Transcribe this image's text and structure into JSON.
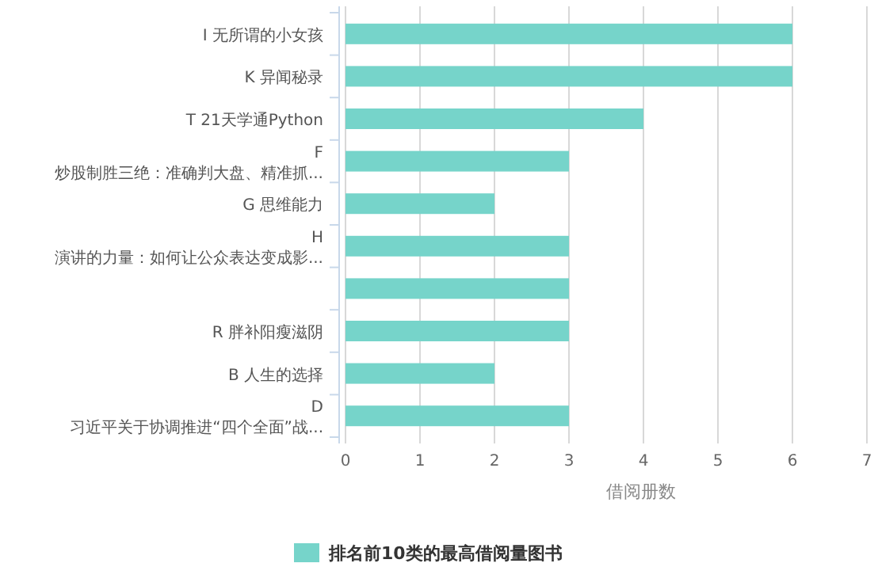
{
  "chart_data": {
    "type": "bar",
    "orientation": "horizontal",
    "categories": [
      "I 无所谓的小女孩",
      "K 异闻秘录",
      "T 21天学通Python",
      "F\n炒股制胜三绝：准确判大盘、精准抓...",
      "G 思维能力",
      "H\n演讲的力量：如何让公众表达变成影...",
      null,
      "R 胖补阳瘦滋阴",
      "B 人生的选择",
      "D\n习近平关于协调推进“四个全面”战..."
    ],
    "series": [
      {
        "name": "排名前10类的最高借阅量图书",
        "color": "#76d4ca",
        "values": [
          6,
          6,
          4,
          3,
          2,
          3,
          3,
          3,
          2,
          3
        ]
      }
    ],
    "xlim": [
      0,
      7
    ],
    "xticks": [
      0,
      1,
      2,
      3,
      4,
      5,
      6,
      7
    ],
    "xlabel": "借阅册数",
    "grid": "x",
    "legend": "bottom"
  }
}
